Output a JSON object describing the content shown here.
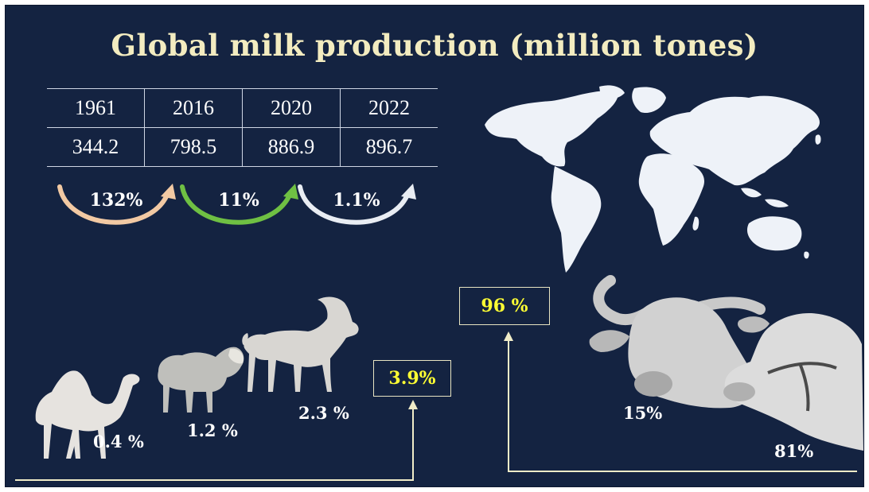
{
  "title": "Global milk production (million tones)",
  "table": {
    "years": [
      "1961",
      "2016",
      "2020",
      "2022"
    ],
    "values": [
      "344.2",
      "798.5",
      "886.9",
      "896.7"
    ]
  },
  "growth": [
    {
      "label": "132%",
      "color": "#f2c9a3"
    },
    {
      "label": "11%",
      "color": "#6fc043"
    },
    {
      "label": "1.1%",
      "color": "#e9edf3"
    }
  ],
  "animals": {
    "camel": "0.4 %",
    "sheep": "1.2 %",
    "goat": "2.3 %",
    "small_ruminants_total": "3.9%",
    "buffalo": "15%",
    "cattle": "81%",
    "large_ruminants_total": "96 %"
  },
  "colors": {
    "background": "#142341",
    "title": "#f3ecc0",
    "highlight": "#ffff33",
    "line": "#f0ecc8"
  },
  "icons": [
    "world-map-icon",
    "camel-icon",
    "sheep-icon",
    "goat-icon",
    "buffalo-icon",
    "cow-icon"
  ]
}
